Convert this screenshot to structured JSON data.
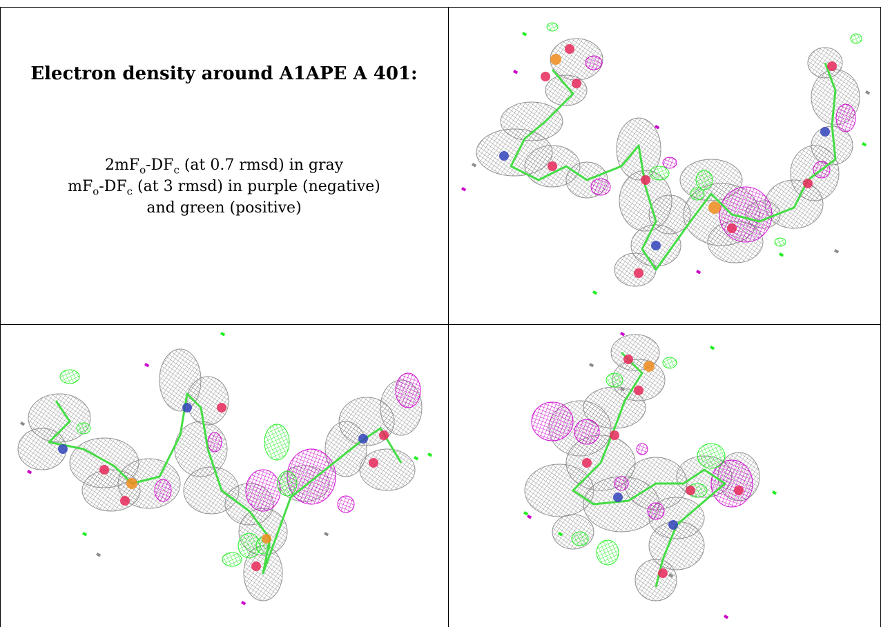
{
  "caption": {
    "title": "Electron density around A1APE A 401:",
    "line1": {
      "pre": "2mF",
      "s1": "o",
      "mid": "-DF",
      "s2": "c",
      "post": " (at 0.7 rmsd) in gray"
    },
    "line2": {
      "pre": "mF",
      "s1": "o",
      "mid": "-DF",
      "s2": "c",
      "post": " (at 3 rmsd) in purple (negative)"
    },
    "line3": "and green (positive)"
  },
  "colors": {
    "mesh_2fofc": "#8c8c8c",
    "mesh_negative": "#cc00cc",
    "mesh_positive": "#22ee22",
    "carbon": "#44dd44",
    "oxygen": "#e8285a",
    "nitrogen": "#3344bb",
    "phosphorus": "#f08c1e"
  },
  "panels": [
    {
      "view": "view-1"
    },
    {
      "view": "view-2"
    },
    {
      "view": "view-3"
    }
  ]
}
